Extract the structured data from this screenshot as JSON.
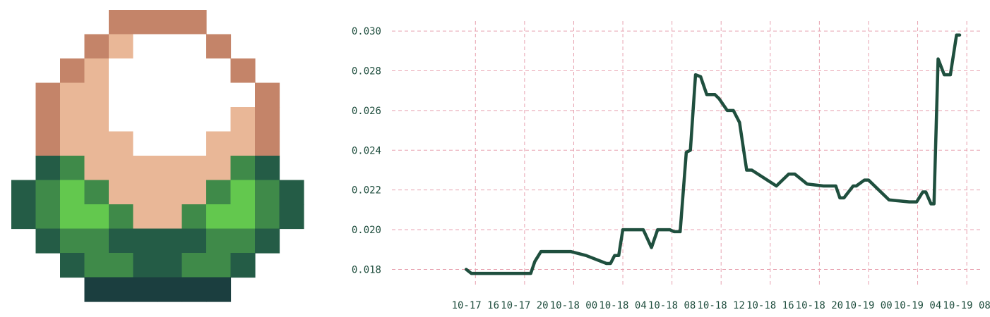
{
  "logo": {
    "palette": {
      "A": "#c48469",
      "B": "#e9b797",
      "W": "#ffffff",
      "D": "#245c46",
      "M": "#3f8a49",
      "L": "#63c84e",
      "N": "#1b3e3f"
    },
    "rows": [
      "....AAAA....",
      "...ABWWWA...",
      "..ABWWWWWA..",
      ".ABBWWWWWWA.",
      ".ABBWWWWWBA.",
      ".ABBBWWWBBA.",
      ".DMBBBBBBMD.",
      "DMLMBBBBMLMD",
      "DMLLMBBMLLMD",
      ".DMMDDDDMMD.",
      "..DMMDDMMD..",
      "...NNNNNN..."
    ]
  },
  "chart_data": {
    "type": "line",
    "title": "",
    "xlabel": "",
    "ylabel": "",
    "ylim": [
      0.0172,
      0.0305
    ],
    "yticks": [
      0.018,
      0.02,
      0.022,
      0.024,
      0.026,
      0.028,
      0.03
    ],
    "ytick_labels": [
      "0.018",
      "0.020",
      "0.022",
      "0.024",
      "0.026",
      "0.028",
      "0.030"
    ],
    "xlim": [
      "2023-10-17 09:12",
      "2023-10-19 09:12"
    ],
    "xticks": [
      "2023-10-17 16:00",
      "2023-10-17 20:00",
      "2023-10-18 00:00",
      "2023-10-18 04:00",
      "2023-10-18 08:00",
      "2023-10-18 12:00",
      "2023-10-18 16:00",
      "2023-10-18 20:00",
      "2023-10-19 00:00",
      "2023-10-19 04:00",
      "2023-10-19 08:00"
    ],
    "xtick_labels": [
      "10-17 16",
      "10-17 20",
      "10-18 00",
      "10-18 04",
      "10-18 08",
      "10-18 12",
      "10-18 16",
      "10-18 20",
      "10-19 00",
      "10-19 04",
      "10-19 08"
    ],
    "grid": true,
    "line_color": "#1f4f3e",
    "grid_color": "#e8a2b0",
    "series": [
      {
        "x": [
          "2023-10-17 15:15",
          "2023-10-17 15:40",
          "2023-10-17 20:30",
          "2023-10-17 20:50",
          "2023-10-17 21:20",
          "2023-10-17 23:00",
          "2023-10-17 23:45",
          "2023-10-18 01:00",
          "2023-10-18 02:40",
          "2023-10-18 03:00",
          "2023-10-18 03:20",
          "2023-10-18 03:40",
          "2023-10-18 04:00",
          "2023-10-18 05:40",
          "2023-10-18 06:20",
          "2023-10-18 06:50",
          "2023-10-18 07:50",
          "2023-10-18 08:10",
          "2023-10-18 08:40",
          "2023-10-18 09:10",
          "2023-10-18 09:30",
          "2023-10-18 09:55",
          "2023-10-18 10:20",
          "2023-10-18 10:50",
          "2023-10-18 11:30",
          "2023-10-18 11:50",
          "2023-10-18 12:30",
          "2023-10-18 13:00",
          "2023-10-18 13:30",
          "2023-10-18 14:05",
          "2023-10-18 14:30",
          "2023-10-18 15:00",
          "2023-10-18 16:30",
          "2023-10-18 17:30",
          "2023-10-18 18:00",
          "2023-10-18 19:00",
          "2023-10-18 20:20",
          "2023-10-18 20:45",
          "2023-10-18 21:20",
          "2023-10-18 21:40",
          "2023-10-18 22:00",
          "2023-10-18 22:45",
          "2023-10-18 23:00",
          "2023-10-18 23:40",
          "2023-10-19 00:00",
          "2023-10-19 01:40",
          "2023-10-19 03:20",
          "2023-10-19 03:40",
          "2023-10-19 03:55",
          "2023-10-19 04:25",
          "2023-10-19 04:40",
          "2023-10-19 05:05",
          "2023-10-19 05:20",
          "2023-10-19 05:40",
          "2023-10-19 06:10",
          "2023-10-19 06:40",
          "2023-10-19 07:10",
          "2023-10-19 07:25"
        ],
        "y": [
          0.018,
          0.0178,
          0.0178,
          0.0184,
          0.0189,
          0.0189,
          0.0189,
          0.0187,
          0.0183,
          0.0183,
          0.0187,
          0.0187,
          0.02,
          0.02,
          0.0191,
          0.02,
          0.02,
          0.0199,
          0.0199,
          0.0239,
          0.024,
          0.0278,
          0.0277,
          0.0268,
          0.0268,
          0.0266,
          0.026,
          0.026,
          0.0254,
          0.023,
          0.023,
          0.0228,
          0.0222,
          0.0228,
          0.0228,
          0.0223,
          0.0222,
          0.0222,
          0.0222,
          0.0216,
          0.0216,
          0.0222,
          0.0222,
          0.0225,
          0.0225,
          0.0215,
          0.0214,
          0.0214,
          0.0214,
          0.0219,
          0.0219,
          0.0213,
          0.0213,
          0.0286,
          0.0278,
          0.0278,
          0.0298,
          0.0298
        ]
      }
    ]
  }
}
